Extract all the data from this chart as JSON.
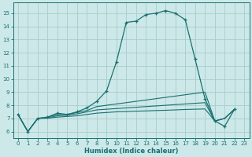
{
  "xlabel": "Humidex (Indice chaleur)",
  "xlim": [
    -0.5,
    23.5
  ],
  "ylim": [
    5.5,
    15.8
  ],
  "bg_color": "#cce8e8",
  "grid_color": "#aacccc",
  "line_color": "#1a7070",
  "xticks": [
    0,
    1,
    2,
    3,
    4,
    5,
    6,
    7,
    8,
    9,
    10,
    11,
    12,
    13,
    14,
    15,
    16,
    17,
    18,
    19,
    20,
    21,
    22,
    23
  ],
  "yticks": [
    6,
    7,
    8,
    9,
    10,
    11,
    12,
    13,
    14,
    15
  ],
  "series": [
    {
      "x": [
        0,
        1,
        2,
        3,
        4,
        5,
        6,
        7,
        8,
        9,
        10,
        11,
        12,
        13,
        14,
        15,
        16,
        17,
        18,
        19,
        20,
        21,
        22
      ],
      "y": [
        7.3,
        6.0,
        7.0,
        7.1,
        7.4,
        7.3,
        7.5,
        7.8,
        8.3,
        9.1,
        11.3,
        14.3,
        14.4,
        14.9,
        15.0,
        15.2,
        15.0,
        14.5,
        11.5,
        8.5,
        6.8,
        6.4,
        7.7
      ],
      "marker": true
    },
    {
      "x": [
        0,
        1,
        2,
        3,
        4,
        5,
        6,
        7,
        8,
        9,
        10,
        11,
        12,
        13,
        14,
        15,
        16,
        17,
        18,
        19,
        20,
        21,
        22
      ],
      "y": [
        7.3,
        6.0,
        7.0,
        7.1,
        7.3,
        7.3,
        7.45,
        7.6,
        7.9,
        8.0,
        8.1,
        8.2,
        8.3,
        8.4,
        8.5,
        8.6,
        8.7,
        8.8,
        8.9,
        9.0,
        6.8,
        7.0,
        7.7
      ],
      "marker": false
    },
    {
      "x": [
        0,
        1,
        2,
        3,
        4,
        5,
        6,
        7,
        8,
        9,
        10,
        11,
        12,
        13,
        14,
        15,
        16,
        17,
        18,
        19,
        20,
        21,
        22
      ],
      "y": [
        7.3,
        6.0,
        7.0,
        7.05,
        7.2,
        7.25,
        7.35,
        7.5,
        7.65,
        7.7,
        7.75,
        7.8,
        7.85,
        7.9,
        7.95,
        8.0,
        8.05,
        8.1,
        8.15,
        8.2,
        6.8,
        7.0,
        7.7
      ],
      "marker": false
    },
    {
      "x": [
        0,
        1,
        2,
        3,
        4,
        5,
        6,
        7,
        8,
        9,
        10,
        11,
        12,
        13,
        14,
        15,
        16,
        17,
        18,
        19,
        20,
        21,
        22
      ],
      "y": [
        7.3,
        6.0,
        7.0,
        7.02,
        7.1,
        7.15,
        7.2,
        7.3,
        7.4,
        7.45,
        7.5,
        7.52,
        7.55,
        7.57,
        7.6,
        7.62,
        7.65,
        7.68,
        7.7,
        7.72,
        6.8,
        7.0,
        7.7
      ],
      "marker": false
    }
  ]
}
